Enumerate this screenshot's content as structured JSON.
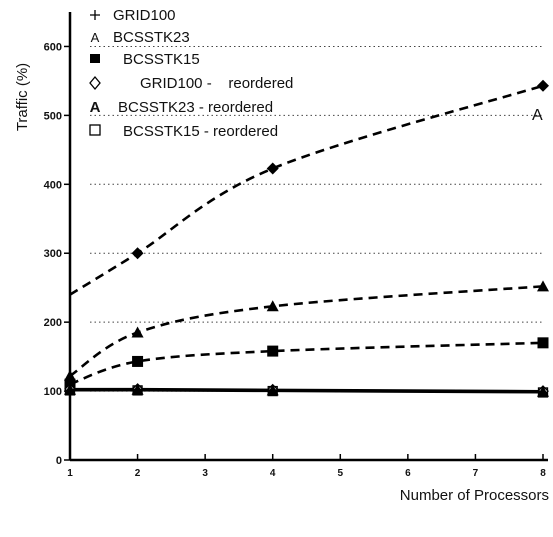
{
  "chart_data": {
    "type": "line",
    "title": "",
    "xlabel": "Number of Processors",
    "ylabel": "Traffic (%)",
    "xlim": [
      1,
      8
    ],
    "ylim": [
      0,
      650
    ],
    "x_ticks": [
      "1",
      "2",
      "3",
      "4",
      "5",
      "6",
      "7",
      "8"
    ],
    "y_ticks": [
      "0",
      "100",
      "200",
      "300",
      "400",
      "500",
      "600"
    ],
    "grid": "horizontal dotted",
    "legend_position": "top-left",
    "annotation": "A",
    "series": [
      {
        "name": "GRID100",
        "marker": "plus",
        "style": "dashed",
        "x": [
          1,
          2,
          4,
          8
        ],
        "y": [
          240,
          300,
          423,
          543
        ]
      },
      {
        "name": "BCSSTK23",
        "marker": "triangle",
        "style": "dashed",
        "x": [
          1,
          2,
          4,
          8
        ],
        "y": [
          122,
          185,
          223,
          252
        ]
      },
      {
        "name": "BCSSTK15",
        "marker": "square-filled",
        "style": "dashed",
        "x": [
          1,
          2,
          4,
          8
        ],
        "y": [
          110,
          143,
          158,
          170
        ]
      },
      {
        "name": "GRID100 -    reordered",
        "marker": "diamond-open",
        "style": "solid",
        "x": [
          1,
          2,
          4,
          8
        ],
        "y": [
          103,
          103,
          102,
          100
        ]
      },
      {
        "name": "BCSSTK23 - reordered",
        "marker": "triangle",
        "style": "solid",
        "x": [
          1,
          2,
          4,
          8
        ],
        "y": [
          102,
          102,
          101,
          99
        ]
      },
      {
        "name": "BCSSTK15 - reordered",
        "marker": "square-open",
        "style": "solid",
        "x": [
          1,
          2,
          4,
          8
        ],
        "y": [
          101,
          101,
          100,
          98
        ]
      }
    ]
  }
}
